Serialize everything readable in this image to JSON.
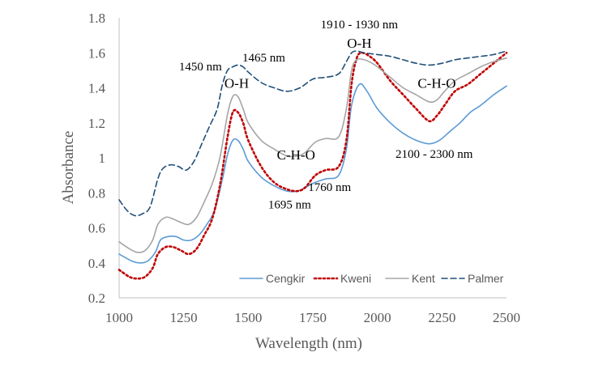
{
  "chart_data": {
    "type": "line",
    "title": "",
    "xlabel": "Wavelength (nm)",
    "ylabel": "Absorbance",
    "xlim": [
      1000,
      2500
    ],
    "ylim": [
      0.2,
      1.8
    ],
    "xticks": [
      1000,
      1250,
      1500,
      1750,
      2000,
      2250,
      2500
    ],
    "yticks": [
      0.2,
      0.4,
      0.6,
      0.8,
      1,
      1.2,
      1.4,
      1.6,
      1.8
    ],
    "xtick_labels": [
      "1000",
      "1250",
      "1500",
      "1750",
      "2000",
      "2250",
      "2500"
    ],
    "ytick_labels": [
      "0.2",
      "0.4",
      "0.6",
      "0.8",
      "1",
      "1.2",
      "1.4",
      "1.6",
      "1.8"
    ],
    "grid": false,
    "legend_position": "bottom-right",
    "series": [
      {
        "name": "Cengkir",
        "color": "#5b9bd5",
        "dash": "solid",
        "x": [
          1000,
          1050,
          1080,
          1110,
          1140,
          1160,
          1190,
          1220,
          1250,
          1280,
          1310,
          1340,
          1370,
          1400,
          1420,
          1440,
          1460,
          1480,
          1500,
          1550,
          1600,
          1650,
          1690,
          1720,
          1760,
          1800,
          1850,
          1880,
          1900,
          1930,
          1960,
          2000,
          2050,
          2100,
          2150,
          2200,
          2240,
          2280,
          2320,
          2360,
          2400,
          2450,
          2500
        ],
        "y": [
          0.45,
          0.41,
          0.4,
          0.41,
          0.46,
          0.53,
          0.55,
          0.55,
          0.53,
          0.53,
          0.56,
          0.62,
          0.7,
          0.88,
          1.02,
          1.1,
          1.1,
          1.05,
          0.98,
          0.89,
          0.84,
          0.81,
          0.81,
          0.83,
          0.86,
          0.88,
          0.9,
          1.05,
          1.3,
          1.42,
          1.38,
          1.28,
          1.2,
          1.14,
          1.1,
          1.08,
          1.1,
          1.15,
          1.2,
          1.26,
          1.3,
          1.36,
          1.41
        ]
      },
      {
        "name": "Kweni",
        "color": "#c00000",
        "dash": "dot",
        "x": [
          1000,
          1040,
          1070,
          1100,
          1130,
          1150,
          1180,
          1210,
          1240,
          1270,
          1300,
          1330,
          1360,
          1390,
          1420,
          1440,
          1460,
          1480,
          1500,
          1550,
          1600,
          1650,
          1690,
          1720,
          1760,
          1800,
          1850,
          1880,
          1900,
          1920,
          1940,
          1970,
          2000,
          2050,
          2100,
          2150,
          2200,
          2230,
          2260,
          2300,
          2350,
          2400,
          2450,
          2500
        ],
        "y": [
          0.36,
          0.32,
          0.31,
          0.32,
          0.37,
          0.45,
          0.49,
          0.49,
          0.47,
          0.45,
          0.48,
          0.56,
          0.65,
          0.84,
          1.12,
          1.26,
          1.26,
          1.2,
          1.1,
          0.95,
          0.86,
          0.82,
          0.81,
          0.83,
          0.9,
          0.93,
          0.95,
          1.1,
          1.42,
          1.57,
          1.6,
          1.58,
          1.54,
          1.44,
          1.36,
          1.28,
          1.21,
          1.24,
          1.3,
          1.38,
          1.42,
          1.48,
          1.54,
          1.6
        ]
      },
      {
        "name": "Kent",
        "color": "#a5a5a5",
        "dash": "solid",
        "x": [
          1000,
          1040,
          1070,
          1100,
          1130,
          1150,
          1180,
          1210,
          1240,
          1270,
          1300,
          1330,
          1360,
          1390,
          1420,
          1440,
          1460,
          1480,
          1500,
          1550,
          1600,
          1650,
          1690,
          1720,
          1760,
          1800,
          1850,
          1880,
          1900,
          1920,
          1950,
          1980,
          2000,
          2050,
          2100,
          2150,
          2200,
          2230,
          2260,
          2300,
          2350,
          2400,
          2450,
          2500
        ],
        "y": [
          0.52,
          0.48,
          0.46,
          0.47,
          0.53,
          0.62,
          0.66,
          0.65,
          0.63,
          0.62,
          0.66,
          0.75,
          0.85,
          1.0,
          1.25,
          1.35,
          1.35,
          1.28,
          1.2,
          1.1,
          1.05,
          1.01,
          1.01,
          1.03,
          1.09,
          1.11,
          1.12,
          1.28,
          1.5,
          1.56,
          1.56,
          1.54,
          1.52,
          1.46,
          1.4,
          1.36,
          1.32,
          1.33,
          1.38,
          1.44,
          1.48,
          1.52,
          1.55,
          1.57
        ]
      },
      {
        "name": "Palmer",
        "color": "#1f4e79",
        "dash": "dash",
        "x": [
          1000,
          1030,
          1060,
          1090,
          1120,
          1150,
          1170,
          1200,
          1230,
          1260,
          1290,
          1320,
          1350,
          1380,
          1400,
          1420,
          1440,
          1460,
          1480,
          1500,
          1550,
          1600,
          1650,
          1700,
          1750,
          1800,
          1850,
          1880,
          1900,
          1920,
          1950,
          2000,
          2050,
          2100,
          2150,
          2200,
          2250,
          2300,
          2350,
          2400,
          2450,
          2500
        ],
        "y": [
          0.76,
          0.7,
          0.67,
          0.68,
          0.72,
          0.88,
          0.94,
          0.96,
          0.95,
          0.93,
          0.98,
          1.08,
          1.18,
          1.28,
          1.42,
          1.5,
          1.52,
          1.53,
          1.52,
          1.49,
          1.43,
          1.4,
          1.38,
          1.4,
          1.45,
          1.46,
          1.48,
          1.55,
          1.6,
          1.61,
          1.6,
          1.59,
          1.58,
          1.56,
          1.54,
          1.53,
          1.54,
          1.56,
          1.57,
          1.58,
          1.59,
          1.61
        ]
      }
    ],
    "annotations": [
      {
        "text": "1450 nm",
        "x": 1315,
        "y": 1.5,
        "size": "sm"
      },
      {
        "text": "1465 nm",
        "x": 1560,
        "y": 1.55,
        "size": "sm"
      },
      {
        "text": "O-H",
        "x": 1455,
        "y": 1.4,
        "size": "lg"
      },
      {
        "text": "1910 - 1930 nm",
        "x": 1930,
        "y": 1.74,
        "size": "sm"
      },
      {
        "text": "O-H",
        "x": 1930,
        "y": 1.63,
        "size": "lg"
      },
      {
        "text": "C-H-O",
        "x": 2230,
        "y": 1.4,
        "size": "lg"
      },
      {
        "text": "C-H-O",
        "x": 1685,
        "y": 0.99,
        "size": "lg"
      },
      {
        "text": "2100 - 2300 nm",
        "x": 2220,
        "y": 1.0,
        "size": "sm"
      },
      {
        "text": "1760 nm",
        "x": 1815,
        "y": 0.81,
        "size": "sm"
      },
      {
        "text": "1695 nm",
        "x": 1660,
        "y": 0.71,
        "size": "sm"
      }
    ]
  }
}
